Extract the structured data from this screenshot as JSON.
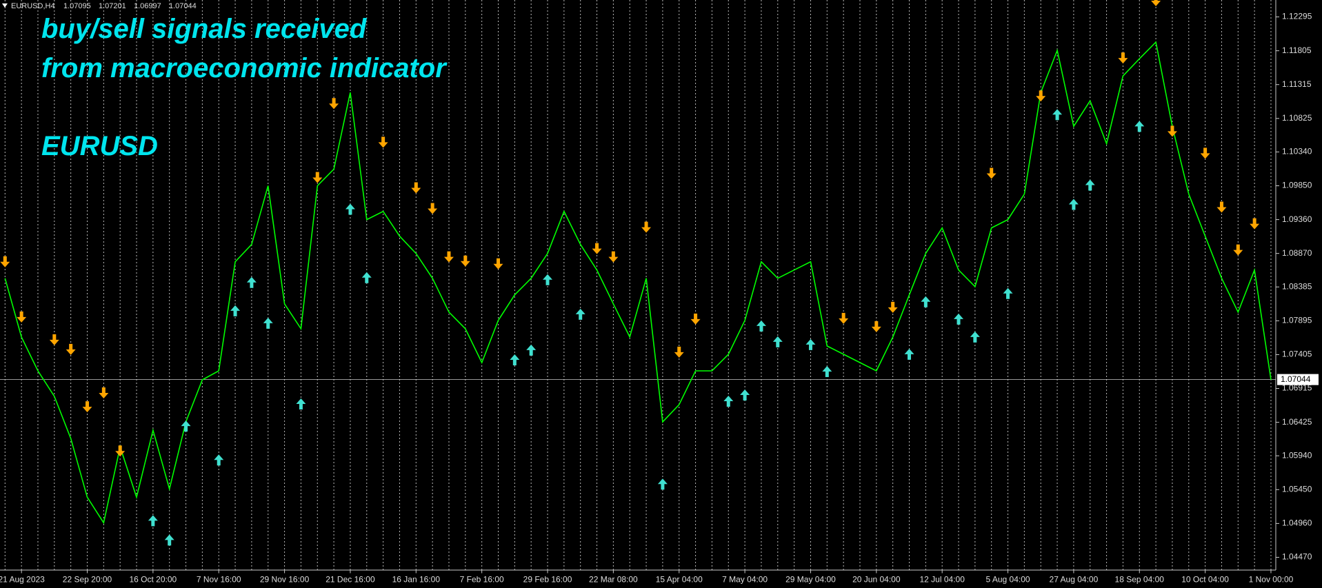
{
  "header": {
    "symbol": "EURUSD,H4",
    "ohlc": [
      1.07095,
      1.07201,
      1.06997,
      1.07044
    ]
  },
  "chart_data": {
    "type": "line",
    "annotations": [
      "buy/sell signals received",
      "from  macroeconomic indicator",
      "EURUSD"
    ],
    "categories": [
      null,
      "21 Aug 2023",
      null,
      null,
      null,
      "22 Sep 20:00",
      null,
      null,
      null,
      "16 Oct 20:00",
      null,
      null,
      null,
      "7 Nov 16:00",
      null,
      null,
      null,
      "29 Nov 16:00",
      null,
      null,
      null,
      "21 Dec 16:00",
      null,
      null,
      null,
      "16 Jan 16:00",
      null,
      null,
      null,
      "7 Feb 16:00",
      null,
      null,
      null,
      "29 Feb 16:00",
      null,
      null,
      null,
      "22 Mar 08:00",
      null,
      null,
      null,
      "15 Apr 04:00",
      null,
      null,
      null,
      "7 May 04:00",
      null,
      null,
      null,
      "29 May 04:00",
      null,
      null,
      null,
      "20 Jun 04:00",
      null,
      null,
      null,
      "12 Jul 04:00",
      null,
      null,
      null,
      "5 Aug 04:00",
      null,
      null,
      null,
      "27 Aug 04:00",
      null,
      null,
      null,
      "18 Sep 04:00",
      null,
      null,
      null,
      "10 Oct 04:00",
      null,
      null,
      null,
      "1 Nov 00:00"
    ],
    "series": [
      {
        "marker": "line",
        "color": "#00ff00",
        "values": [
          1.0851,
          1.0766,
          1.0717,
          1.068,
          1.0619,
          1.0534,
          1.0497,
          1.0607,
          1.0534,
          1.0631,
          1.0546,
          1.0643,
          1.0704,
          1.0717,
          1.0875,
          1.09,
          1.0985,
          1.0814,
          1.0778,
          1.0985,
          1.1009,
          1.112,
          1.0936,
          1.0948,
          1.0912,
          1.0887,
          1.0851,
          1.0802,
          1.0778,
          1.0729,
          1.079,
          1.0827,
          1.0851,
          1.0887,
          1.0948,
          1.09,
          1.0863,
          1.0814,
          1.0766,
          1.0851,
          1.0643,
          1.0668,
          1.0717,
          1.0717,
          1.0741,
          1.079,
          1.0875,
          1.0851,
          1.0863,
          1.0875,
          1.0753,
          1.0741,
          1.0729,
          1.0717,
          1.0766,
          1.0827,
          1.0887,
          1.0924,
          1.0863,
          1.0839,
          1.0924,
          1.0936,
          1.0973,
          1.112,
          1.1181,
          1.1071,
          1.1108,
          1.1046,
          1.1144,
          1.1169,
          1.1193,
          1.1071,
          1.0973,
          1.0912,
          1.0851,
          1.0802,
          1.0863,
          1.0704
        ]
      },
      {
        "marker": "arrow-down",
        "color": "#ffa500",
        "values": [
          1.0872,
          1.0792,
          null,
          1.0759,
          1.0745,
          1.0662,
          1.0682,
          1.0598,
          null,
          null,
          null,
          null,
          null,
          null,
          null,
          null,
          null,
          null,
          null,
          1.0994,
          1.1101,
          null,
          null,
          1.1045,
          null,
          1.0979,
          1.0949,
          1.0879,
          1.0873,
          null,
          1.0869,
          null,
          null,
          null,
          null,
          null,
          1.0891,
          1.0879,
          null,
          1.0922,
          null,
          1.0741,
          1.0789,
          null,
          null,
          null,
          null,
          null,
          null,
          null,
          null,
          1.079,
          null,
          1.0778,
          1.0806,
          null,
          null,
          null,
          null,
          null,
          1.1,
          null,
          null,
          1.1112,
          null,
          null,
          null,
          null,
          1.1167,
          null,
          1.125,
          1.1061,
          null,
          1.1029,
          1.0951,
          1.0889,
          1.0927,
          null
        ]
      },
      {
        "marker": "arrow-up",
        "color": "#40e0d0",
        "values": [
          null,
          null,
          null,
          null,
          null,
          null,
          null,
          null,
          null,
          1.0503,
          1.0475,
          1.064,
          null,
          1.0591,
          1.0807,
          1.0848,
          1.0789,
          null,
          1.0672,
          null,
          null,
          1.0954,
          1.0855,
          null,
          null,
          null,
          null,
          null,
          null,
          null,
          null,
          1.0736,
          1.075,
          1.0852,
          null,
          1.0802,
          null,
          null,
          null,
          null,
          1.0556,
          null,
          null,
          null,
          1.0676,
          1.0685,
          1.0785,
          1.0762,
          null,
          1.0758,
          1.0719,
          null,
          null,
          null,
          null,
          1.0744,
          1.082,
          null,
          1.0795,
          1.0769,
          null,
          1.0832,
          null,
          null,
          1.1091,
          1.0961,
          1.0989,
          null,
          null,
          1.1074,
          null,
          null,
          null,
          null,
          null,
          null,
          null,
          null
        ]
      }
    ],
    "current_price": 1.07044,
    "ylim": [
      1.0429,
      1.1254
    ],
    "yticks": [
      1.12295,
      1.11805,
      1.11315,
      1.10825,
      {
        "value": 1.1034,
        "label": "1.10340"
      },
      {
        "value": 1.0985,
        "label": "1.09850"
      },
      {
        "value": 1.0936,
        "label": "1.09360"
      },
      {
        "value": 1.0887,
        "label": "1.08870"
      },
      1.08385,
      1.07895,
      1.07405,
      1.06915,
      1.06425,
      {
        "value": 1.0594,
        "label": "1.05940"
      },
      {
        "value": 1.0545,
        "label": "1.05450"
      },
      {
        "value": 1.0496,
        "label": "1.04960"
      },
      {
        "value": 1.0447,
        "label": "1.04470"
      }
    ],
    "grid": true
  }
}
